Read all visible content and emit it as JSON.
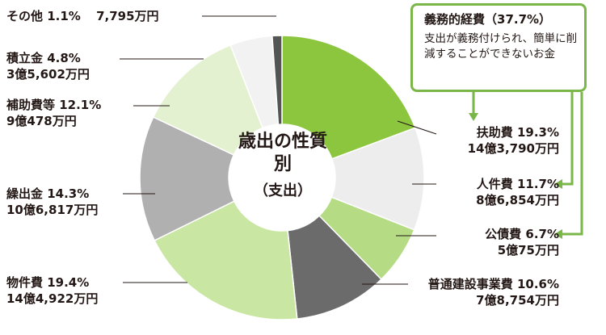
{
  "chart_data": {
    "type": "pie",
    "center_label": {
      "title": "歳出の性質別",
      "subtitle": "（支出）"
    },
    "slices": [
      {
        "name": "扶助費",
        "percent": 19.3,
        "amount": "14億3,790万円",
        "color": "#8cc63f"
      },
      {
        "name": "人件費",
        "percent": 11.7,
        "amount": "8億6,854万円",
        "color": "#ededed"
      },
      {
        "name": "公債費",
        "percent": 6.7,
        "amount": "5億75万円",
        "color": "#b5dc85"
      },
      {
        "name": "普通建設事業費",
        "percent": 10.6,
        "amount": "7億8,754万円",
        "color": "#6b6b6b"
      },
      {
        "name": "物件費",
        "percent": 19.4,
        "amount": "14億4,922万円",
        "color": "#c9e6a3"
      },
      {
        "name": "繰出金",
        "percent": 14.3,
        "amount": "10億6,817万円",
        "color": "#b0b0b0"
      },
      {
        "name": "補助費等",
        "percent": 12.1,
        "amount": "9億478万円",
        "color": "#e4f1d1"
      },
      {
        "name": "積立金",
        "percent": 4.8,
        "amount": "3億5,602万円",
        "color": "#f2f2f2"
      },
      {
        "name": "その他",
        "percent": 1.1,
        "amount": "7,795万円",
        "color": "#555555"
      }
    ],
    "callout": {
      "title": "義務的経費（37.7%）",
      "description": "支出が義務付けられ、簡単に削減することができないお金",
      "members": [
        "扶助費",
        "人件費",
        "公債費"
      ],
      "color": "#7ab648"
    }
  },
  "labels": {
    "fujo_name": "扶助費 19.3%",
    "fujo_amount": "14億3,790万円",
    "jinken_name": "人件費 11.7%",
    "jinken_amount": "8億6,854万円",
    "kosai_name": "公債費 6.7%",
    "kosai_amount": "5億75万円",
    "futsu_name": "普通建設事業費 10.6%",
    "futsu_amount": "7億8,754万円",
    "bukken_name": "物件費 19.4%",
    "bukken_amount": "14億4,922万円",
    "kuridashi_name": "繰出金 14.3%",
    "kuridashi_amount": "10億6,817万円",
    "hojo_name": "補助費等 12.1%",
    "hojo_amount": "9億478万円",
    "tsumitate_name": "積立金 4.8%",
    "tsumitate_amount": "3億5,602万円",
    "sonota_name": "その他 1.1%",
    "sonota_amount": "7,795万円"
  }
}
